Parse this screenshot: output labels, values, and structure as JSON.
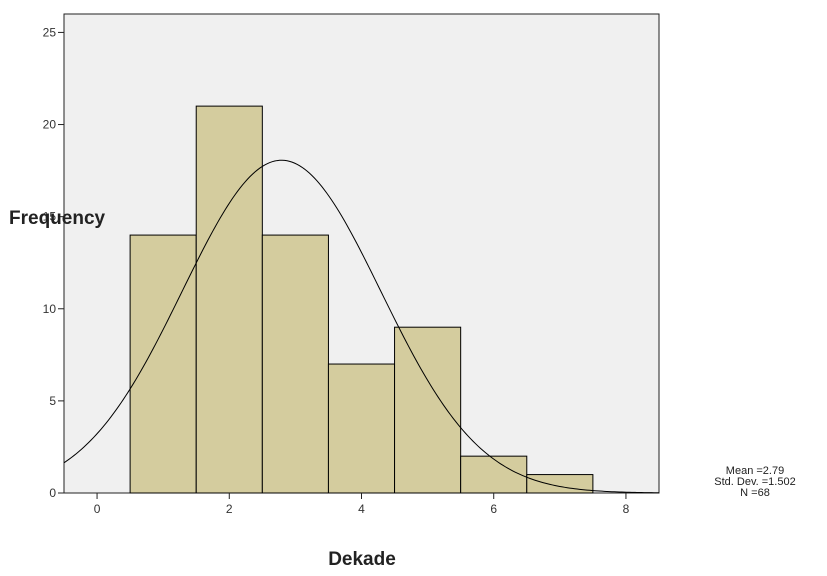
{
  "chart_data": {
    "type": "bar",
    "subtype": "histogram",
    "xlabel": "Dekade",
    "ylabel": "Frequency",
    "xlim": [
      -0.5,
      8.5
    ],
    "ylim": [
      0,
      26
    ],
    "x_ticks": [
      0,
      2,
      4,
      6,
      8
    ],
    "y_ticks": [
      0,
      5,
      10,
      15,
      20,
      25
    ],
    "bins": [
      {
        "center": 1,
        "value": 14
      },
      {
        "center": 2,
        "value": 21
      },
      {
        "center": 3,
        "value": 14
      },
      {
        "center": 4,
        "value": 7
      },
      {
        "center": 5,
        "value": 9
      },
      {
        "center": 6,
        "value": 2
      },
      {
        "center": 7,
        "value": 1
      }
    ],
    "bin_width": 1,
    "normal_curve": {
      "mean": 2.79,
      "std_dev": 1.502,
      "n": 68
    },
    "stats": {
      "mean_text": "Mean =2.79",
      "std_text": "Std. Dev. =1.502",
      "n_text": "N =68"
    },
    "grid": false,
    "colors": {
      "plot_background": "#f0f0f0",
      "bar_fill": "#d4cc9e",
      "bar_stroke": "#000000",
      "curve": "#000000"
    }
  }
}
